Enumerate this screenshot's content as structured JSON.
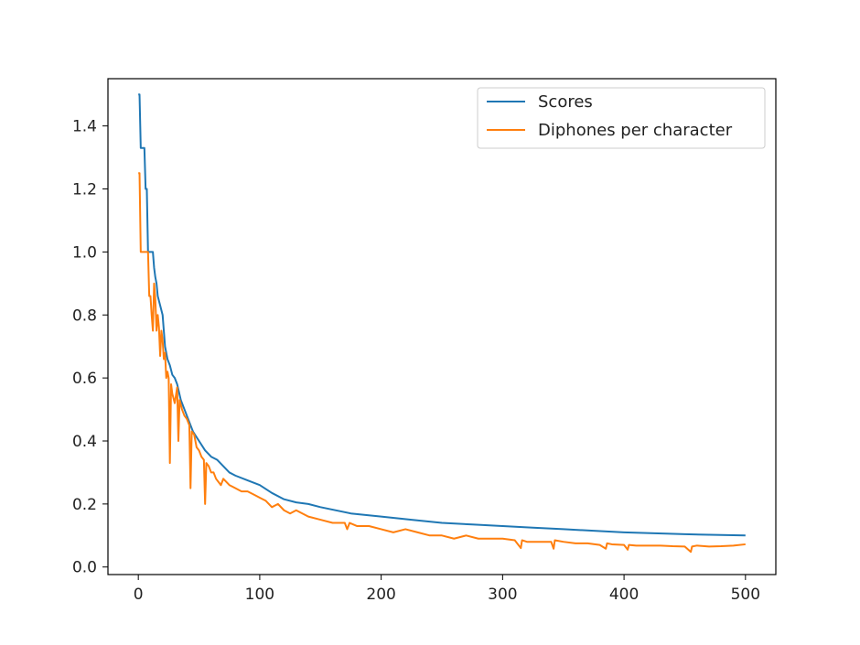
{
  "chart_data": {
    "type": "line",
    "title": "",
    "xlabel": "",
    "ylabel": "",
    "xlim": [
      -25,
      525
    ],
    "ylim": [
      -0.024,
      1.55
    ],
    "grid": false,
    "legend_position": "top-right",
    "x_ticks": [
      0,
      100,
      200,
      300,
      400,
      500
    ],
    "x_tick_labels": [
      "0",
      "100",
      "200",
      "300",
      "400",
      "500"
    ],
    "y_ticks": [
      0.0,
      0.2,
      0.4,
      0.6,
      0.8,
      1.0,
      1.2,
      1.4
    ],
    "y_tick_labels": [
      "0.0",
      "0.2",
      "0.4",
      "0.6",
      "0.8",
      "1.0",
      "1.2",
      "1.4"
    ],
    "series": [
      {
        "name": "Scores",
        "color": "#1f77b4",
        "x": [
          0,
          1,
          2,
          3,
          4,
          5,
          6,
          7,
          8,
          9,
          10,
          11,
          12,
          13,
          14,
          15,
          16,
          18,
          20,
          22,
          24,
          26,
          28,
          30,
          32,
          35,
          38,
          40,
          45,
          50,
          55,
          60,
          65,
          70,
          75,
          80,
          90,
          100,
          110,
          120,
          130,
          140,
          150,
          175,
          200,
          225,
          250,
          275,
          300,
          325,
          350,
          375,
          400,
          425,
          450,
          475,
          500
        ],
        "y": [
          1.5,
          1.5,
          1.33,
          1.33,
          1.33,
          1.33,
          1.2,
          1.2,
          1.0,
          1.0,
          1.0,
          1.0,
          1.0,
          0.95,
          0.92,
          0.9,
          0.86,
          0.83,
          0.8,
          0.7,
          0.66,
          0.64,
          0.61,
          0.6,
          0.58,
          0.53,
          0.5,
          0.48,
          0.43,
          0.4,
          0.37,
          0.35,
          0.34,
          0.32,
          0.3,
          0.29,
          0.275,
          0.26,
          0.235,
          0.215,
          0.205,
          0.2,
          0.19,
          0.17,
          0.16,
          0.15,
          0.14,
          0.135,
          0.13,
          0.125,
          0.12,
          0.115,
          0.11,
          0.107,
          0.104,
          0.102,
          0.1
        ]
      },
      {
        "name": "Diphones per character",
        "color": "#ff7f0e",
        "x": [
          0,
          1,
          2,
          3,
          4,
          5,
          6,
          7,
          8,
          9,
          10,
          11,
          12,
          13,
          14,
          15,
          16,
          17,
          18,
          19,
          20,
          21,
          22,
          23,
          24,
          25,
          26,
          27,
          28,
          30,
          32,
          33,
          34,
          36,
          38,
          40,
          42,
          43,
          44,
          46,
          48,
          50,
          52,
          54,
          55,
          56,
          58,
          60,
          62,
          64,
          66,
          68,
          70,
          75,
          80,
          85,
          90,
          95,
          100,
          105,
          110,
          115,
          120,
          125,
          130,
          140,
          150,
          160,
          170,
          172,
          174,
          180,
          190,
          200,
          210,
          220,
          230,
          240,
          250,
          260,
          270,
          280,
          290,
          300,
          310,
          315,
          316,
          320,
          330,
          340,
          342,
          343,
          350,
          360,
          370,
          380,
          385,
          386,
          390,
          400,
          403,
          404,
          410,
          420,
          430,
          440,
          450,
          455,
          456,
          460,
          470,
          480,
          490,
          500
        ],
        "y": [
          1.25,
          1.25,
          1.0,
          1.0,
          1.0,
          1.0,
          1.0,
          1.0,
          1.0,
          0.86,
          0.86,
          0.8,
          0.75,
          0.9,
          0.85,
          0.75,
          0.8,
          0.76,
          0.67,
          0.75,
          0.72,
          0.66,
          0.68,
          0.6,
          0.62,
          0.6,
          0.33,
          0.58,
          0.55,
          0.52,
          0.57,
          0.4,
          0.53,
          0.5,
          0.48,
          0.47,
          0.45,
          0.25,
          0.43,
          0.42,
          0.38,
          0.37,
          0.35,
          0.34,
          0.2,
          0.33,
          0.32,
          0.3,
          0.3,
          0.28,
          0.27,
          0.26,
          0.28,
          0.26,
          0.25,
          0.24,
          0.24,
          0.23,
          0.22,
          0.21,
          0.19,
          0.2,
          0.18,
          0.17,
          0.18,
          0.16,
          0.15,
          0.14,
          0.14,
          0.12,
          0.14,
          0.13,
          0.13,
          0.12,
          0.11,
          0.12,
          0.11,
          0.1,
          0.1,
          0.09,
          0.1,
          0.09,
          0.09,
          0.09,
          0.085,
          0.06,
          0.085,
          0.08,
          0.08,
          0.08,
          0.058,
          0.085,
          0.08,
          0.075,
          0.075,
          0.07,
          0.058,
          0.075,
          0.072,
          0.07,
          0.055,
          0.07,
          0.068,
          0.068,
          0.068,
          0.066,
          0.065,
          0.048,
          0.065,
          0.068,
          0.065,
          0.066,
          0.068,
          0.072
        ]
      }
    ]
  }
}
